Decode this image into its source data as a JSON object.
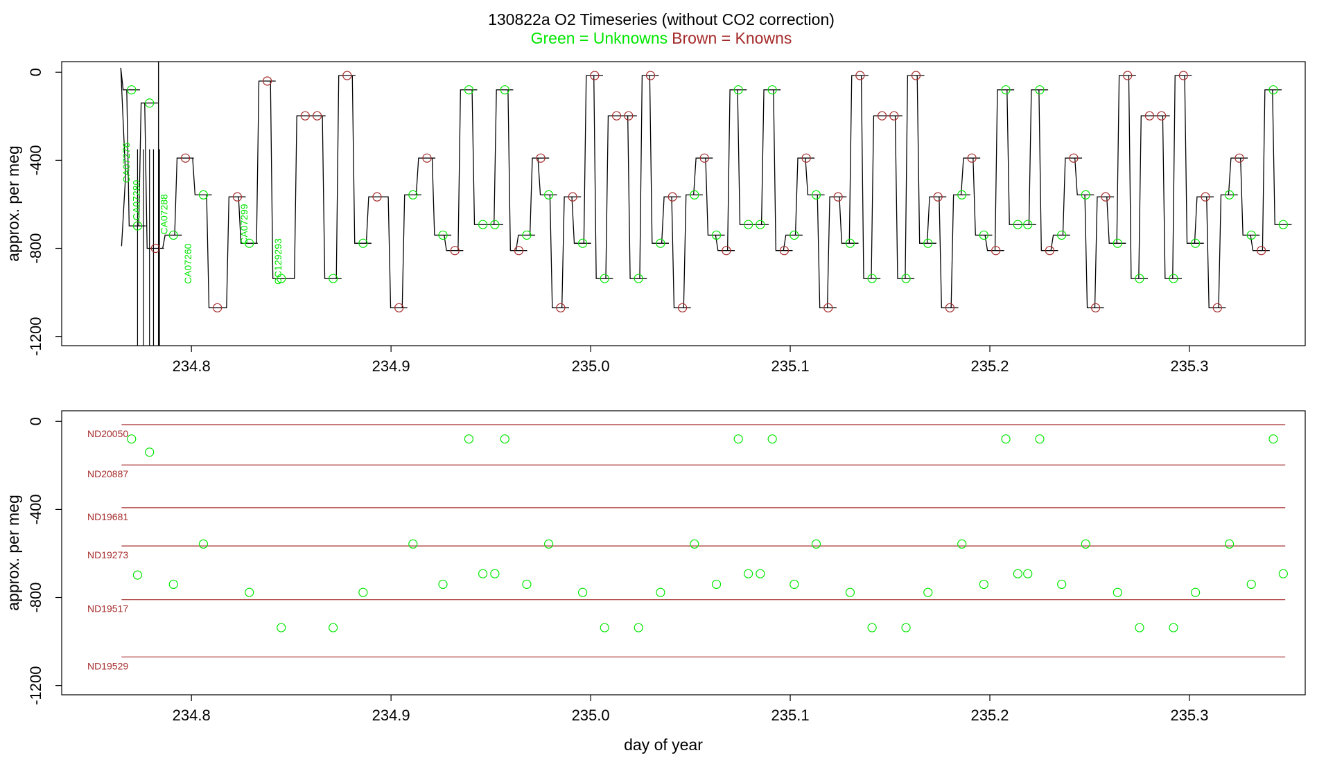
{
  "figure": {
    "title": "130822a   O2 Timeseries (without CO2 correction)",
    "subtitle_green": "Green = Unknowns",
    "subtitle_brown": "Brown = Knowns",
    "colors": {
      "green": "#00e600",
      "brown": "#a52a2a",
      "trace": "#000000",
      "axis": "#000000"
    }
  },
  "chart_data": [
    {
      "type": "line",
      "title": "130822a   O2 Timeseries (without CO2 correction)",
      "ylabel": "approx. per meg",
      "xlabel": "",
      "xlim": [
        234.735,
        235.358
      ],
      "ylim": [
        -1242,
        48
      ],
      "x_ticks": [
        234.8,
        234.9,
        235.0,
        235.1,
        235.2,
        235.3
      ],
      "x_tick_labels": [
        "234.8",
        "234.9",
        "235.0",
        "235.1",
        "235.2",
        "235.3"
      ],
      "y_ticks": [
        0,
        -400,
        -800,
        -1200
      ],
      "y_tick_labels": [
        "0",
        "-400",
        "-800",
        "-1200"
      ],
      "grid": false,
      "start_day": 234.765,
      "end_day": 235.35,
      "spikes_x": [
        234.773,
        234.776,
        234.779,
        234.781,
        234.784
      ],
      "spikes_y": [
        -1242,
        -1242,
        -1242,
        -1242,
        -1242
      ],
      "unknown_labels": [
        {
          "text": "CA07276",
          "x": 234.769,
          "y": -411
        },
        {
          "text": "CA07280",
          "x": 234.774,
          "y": -581
        },
        {
          "text": "CA07288",
          "x": 234.788,
          "y": -645
        },
        {
          "text": "CA07260",
          "x": 234.8,
          "y": -870
        },
        {
          "text": "CA07299",
          "x": 234.828,
          "y": -690
        },
        {
          "text": "CC129293",
          "x": 234.845,
          "y": -860
        }
      ],
      "series": [
        {
          "name": "Unknowns",
          "x": [
            234.77,
            234.773,
            234.779,
            234.791,
            234.806,
            234.829,
            234.845,
            234.871,
            234.886,
            234.911,
            234.926,
            234.939,
            234.946,
            234.952,
            234.957,
            234.968,
            234.979,
            234.996,
            235.007,
            235.024,
            235.035,
            235.052,
            235.063,
            235.074,
            235.079,
            235.085,
            235.091,
            235.102,
            235.113,
            235.13,
            235.141,
            235.158,
            235.169,
            235.186,
            235.197,
            235.208,
            235.214,
            235.219,
            235.225,
            235.236,
            235.248,
            235.264,
            235.275,
            235.292,
            235.303,
            235.32,
            235.331,
            235.342,
            235.347
          ],
          "y": [
            -80,
            -698,
            -140,
            -740,
            -557,
            -777,
            -937,
            -937,
            -777,
            -557,
            -740,
            -80,
            -692,
            -692,
            -80,
            -740,
            -557,
            -777,
            -937,
            -937,
            -777,
            -557,
            -740,
            -80,
            -692,
            -692,
            -80,
            -740,
            -557,
            -777,
            -937,
            -937,
            -777,
            -557,
            -740,
            -80,
            -692,
            -692,
            -80,
            -740,
            -557,
            -777,
            -937,
            -937,
            -777,
            -557,
            -740,
            -80,
            -692
          ]
        },
        {
          "name": "Knowns",
          "x": [
            234.782,
            234.797,
            234.813,
            234.823,
            234.838,
            234.857,
            234.863,
            234.878,
            234.893,
            234.904,
            234.918,
            234.932,
            234.964,
            234.975,
            234.985,
            234.991,
            235.002,
            235.013,
            235.019,
            235.03,
            235.041,
            235.046,
            235.057,
            235.068,
            235.097,
            235.108,
            235.119,
            235.124,
            235.135,
            235.146,
            235.152,
            235.163,
            235.174,
            235.18,
            235.191,
            235.203,
            235.23,
            235.242,
            235.253,
            235.258,
            235.269,
            235.28,
            235.286,
            235.297,
            235.308,
            235.314,
            235.325,
            235.336
          ],
          "y": [
            -800,
            -390,
            -1070,
            -566,
            -40,
            -198,
            -198,
            -15,
            -566,
            -1070,
            -390,
            -810,
            -810,
            -390,
            -1070,
            -566,
            -15,
            -198,
            -198,
            -15,
            -566,
            -1070,
            -390,
            -810,
            -810,
            -390,
            -1070,
            -566,
            -15,
            -198,
            -198,
            -15,
            -566,
            -1070,
            -390,
            -810,
            -810,
            -390,
            -1070,
            -566,
            -15,
            -198,
            -198,
            -15,
            -566,
            -1070,
            -390,
            -810
          ]
        }
      ]
    },
    {
      "type": "scatter",
      "title": "",
      "ylabel": "approx. per meg",
      "xlabel": "day of year",
      "xlim": [
        234.735,
        235.358
      ],
      "ylim": [
        -1242,
        48
      ],
      "x_ticks": [
        234.8,
        234.9,
        235.0,
        235.1,
        235.2,
        235.3
      ],
      "x_tick_labels": [
        "234.8",
        "234.9",
        "235.0",
        "235.1",
        "235.2",
        "235.3"
      ],
      "y_ticks": [
        0,
        -400,
        -800,
        -1200
      ],
      "y_tick_labels": [
        "0",
        "-400",
        "-800",
        "-1200"
      ],
      "grid": false,
      "line_x": [
        234.765,
        235.348
      ],
      "standard_lines": [
        {
          "name": "ND20050",
          "y": [
            -15,
            -15
          ]
        },
        {
          "name": "ND20887",
          "y": [
            -198,
            -198
          ]
        },
        {
          "name": "ND19681",
          "y": [
            -392,
            -392
          ]
        },
        {
          "name": "ND19273",
          "y": [
            -566,
            -566
          ]
        },
        {
          "name": "ND19517",
          "y": [
            -810,
            -810
          ]
        },
        {
          "name": "ND19529",
          "y": [
            -1070,
            -1070
          ]
        }
      ],
      "series": [
        {
          "name": "Unknowns",
          "x": [
            234.77,
            234.773,
            234.779,
            234.791,
            234.806,
            234.829,
            234.845,
            234.871,
            234.886,
            234.911,
            234.926,
            234.939,
            234.946,
            234.952,
            234.957,
            234.968,
            234.979,
            234.996,
            235.007,
            235.024,
            235.035,
            235.052,
            235.063,
            235.074,
            235.079,
            235.085,
            235.091,
            235.102,
            235.113,
            235.13,
            235.141,
            235.158,
            235.169,
            235.186,
            235.197,
            235.208,
            235.214,
            235.219,
            235.225,
            235.236,
            235.248,
            235.264,
            235.275,
            235.292,
            235.303,
            235.32,
            235.331,
            235.342,
            235.347
          ],
          "y": [
            -80,
            -698,
            -140,
            -740,
            -557,
            -777,
            -937,
            -937,
            -777,
            -557,
            -740,
            -80,
            -692,
            -692,
            -80,
            -740,
            -557,
            -777,
            -937,
            -937,
            -777,
            -557,
            -740,
            -80,
            -692,
            -692,
            -80,
            -740,
            -557,
            -777,
            -937,
            -937,
            -777,
            -557,
            -740,
            -80,
            -692,
            -692,
            -80,
            -740,
            -557,
            -777,
            -937,
            -937,
            -777,
            -557,
            -740,
            -80,
            -692
          ]
        }
      ]
    }
  ]
}
